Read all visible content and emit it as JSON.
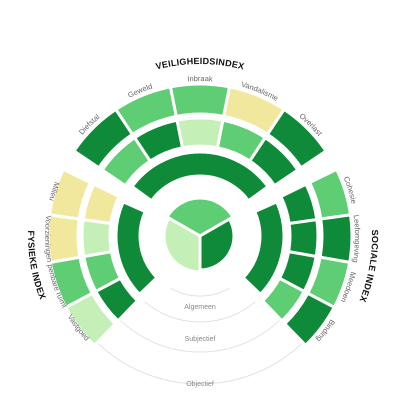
{
  "chart_data": {
    "type": "radial-heatmap",
    "title": "",
    "palette": {
      "1": "#0e8a38",
      "2": "#0a7a32",
      "3": "#5fcd73",
      "4": "#c4efb6",
      "5": "#f1e89e"
    },
    "groups": [
      {
        "id": "veiligheid",
        "title": "VEILIGHEIDSINDEX",
        "categories": [
          "Diefstal",
          "Geweld",
          "Inbraak",
          "Vandalisme",
          "Overlast"
        ],
        "objectief": [
          1,
          3,
          3,
          5,
          1
        ],
        "subjectief": [
          3,
          1,
          4,
          3,
          1
        ],
        "algemeen": [
          1
        ]
      },
      {
        "id": "sociaal",
        "title": "SOCIALE INDEX",
        "categories": [
          "Cohesie",
          "Leefomgeving",
          "Meedoen",
          "Binding"
        ],
        "objectief": [
          3,
          1,
          3,
          1
        ],
        "subjectief": [
          1,
          1,
          1,
          3
        ],
        "algemeen": [
          1
        ]
      },
      {
        "id": "fysiek",
        "title": "FYSIEKE INDEX",
        "categories": [
          "Vastgoed",
          "Openbare ruimte",
          "Voorzieningen",
          "Milieu"
        ],
        "objectief": [
          4,
          3,
          5,
          5
        ],
        "subjectief": [
          1,
          3,
          4,
          5
        ],
        "algemeen": [
          1
        ]
      }
    ],
    "center": {
      "segments": [
        {
          "group": "veiligheid",
          "value": 3
        },
        {
          "group": "sociaal",
          "value": 1
        },
        {
          "group": "fysiek",
          "value": 4
        }
      ]
    },
    "rings": {
      "objectief": "Objectief",
      "subjectief": "Subjectief",
      "algemeen": "Algemeen"
    }
  }
}
